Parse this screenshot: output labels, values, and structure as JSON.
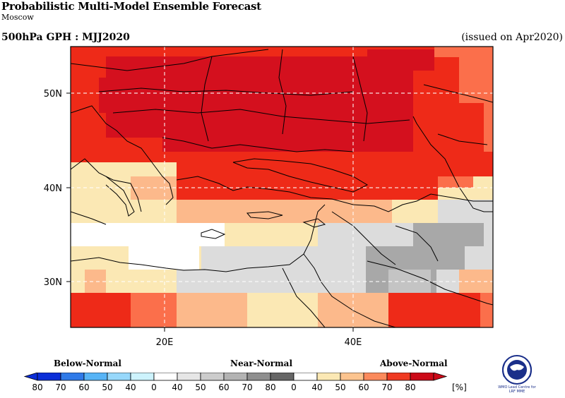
{
  "header": {
    "title": "Probabilistic Multi-Model Ensemble Forecast",
    "subtitle": "Moscow",
    "product": "500hPa GPH : MJJ2020",
    "issued": "(issued on Apr2020)"
  },
  "map": {
    "lon_labels": [
      "20E",
      "40E"
    ],
    "lat_labels": [
      "50N",
      "40N",
      "30N"
    ],
    "grid_style": "dashed",
    "colors": {
      "above_80": "#d4101e",
      "above_70": "#ee2a18",
      "above_60": "#fb6f4b",
      "above_50": "#fcb98b",
      "above_40": "#fbe8b4",
      "white": "#ffffff",
      "near_40": "#dcdcdc",
      "near_50": "#c4c4c4",
      "near_60": "#a8a8a8"
    }
  },
  "legend": {
    "categories": {
      "below": "Below-Normal",
      "near": "Near-Normal",
      "above": "Above-Normal"
    },
    "unit": "[%]",
    "below_colors": [
      "#0b2ed8",
      "#2f7ae8",
      "#57b4f6",
      "#97d8fb",
      "#cdf3fd"
    ],
    "near_colors": [
      "#e6e6e6",
      "#cccccc",
      "#b3b3b3",
      "#8f8f8f",
      "#666666"
    ],
    "above_colors": [
      "#fbe8b4",
      "#fcc48f",
      "#fb8a5c",
      "#ef3a22",
      "#cc0a18"
    ],
    "labels": [
      "80",
      "70",
      "60",
      "50",
      "40",
      "0",
      "40",
      "50",
      "60",
      "70",
      "80",
      "0",
      "40",
      "50",
      "60",
      "70",
      "80"
    ]
  },
  "logo": {
    "text_line1": "WMO Lead Centre for",
    "text_line2": "LRF MME"
  }
}
